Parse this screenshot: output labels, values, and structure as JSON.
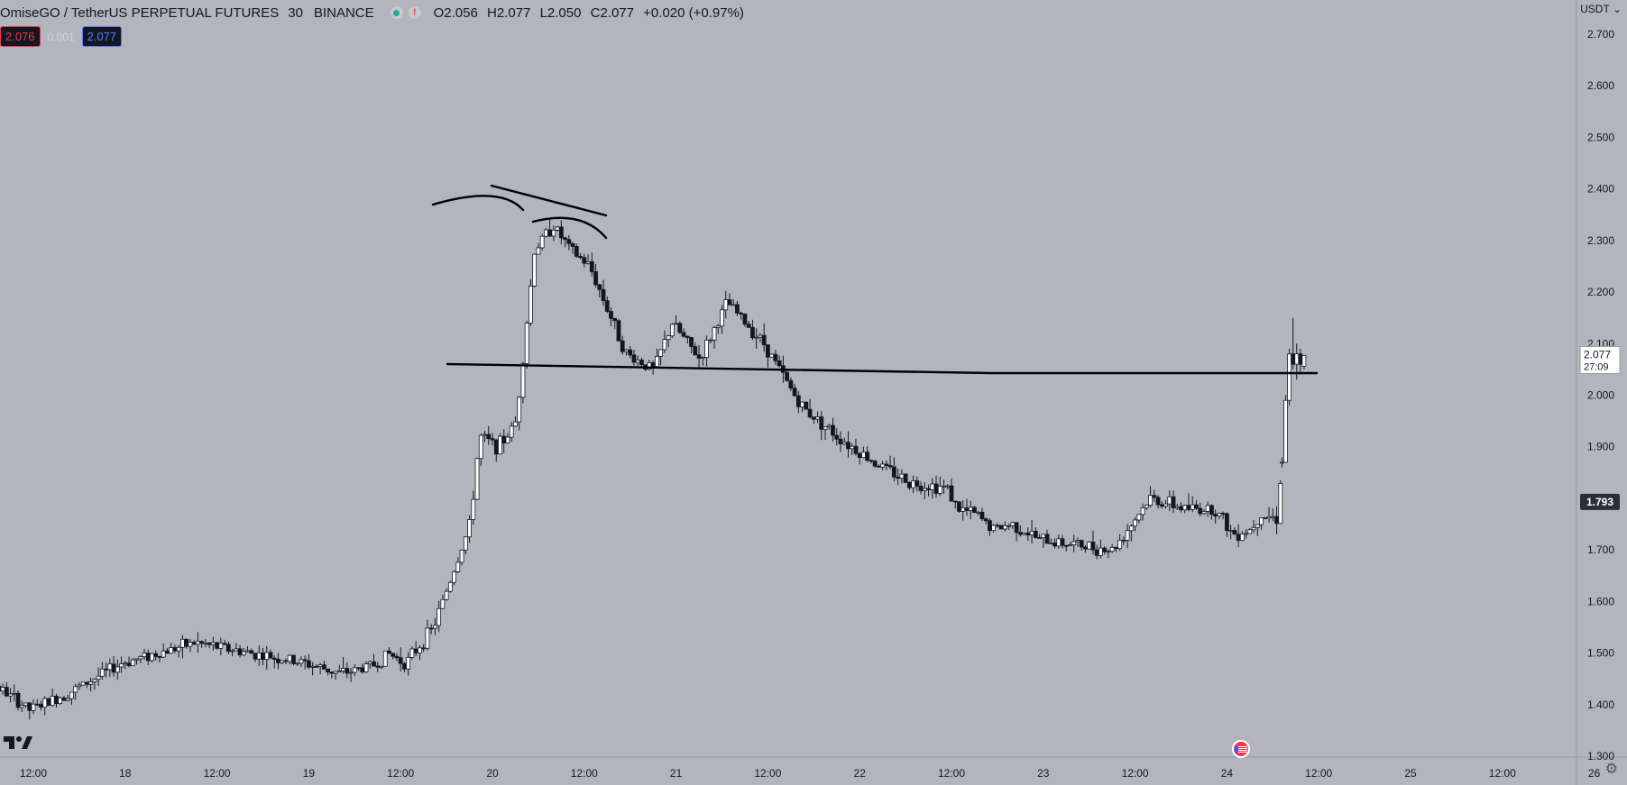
{
  "header": {
    "symbol": "OmiseGO / TetherUS PERPETUAL FUTURES",
    "timeframe": "30",
    "exchange": "BINANCE",
    "market_closed_icon": "exclamation-icon",
    "ohlc": {
      "open": "O2.056",
      "high": "H2.077",
      "low": "L2.050",
      "close": "C2.077",
      "change": "+0.020 (+0.97%)"
    }
  },
  "trade": {
    "sell": "2.076",
    "spread": "0.001",
    "buy": "2.077"
  },
  "axis": {
    "currency": "USDT"
  },
  "last_price": {
    "value": "2.077",
    "countdown": "27:09"
  },
  "marker_price": "1.793",
  "colors": {
    "background": "#b2b5be",
    "candle": "#131722",
    "sell": "#f23645",
    "buy": "#5b7cff"
  },
  "chart_data": {
    "type": "candlestick",
    "y_ticks": [
      "2.700",
      "2.600",
      "2.500",
      "2.400",
      "2.300",
      "2.200",
      "2.100",
      "2.000",
      "1.900",
      "1.800",
      "1.700",
      "1.600",
      "1.500",
      "1.400",
      "1.300"
    ],
    "ylim": [
      1.3,
      2.7
    ],
    "x_ticks": [
      "12:00",
      "18",
      "12:00",
      "19",
      "12:00",
      "20",
      "12:00",
      "21",
      "12:00",
      "22",
      "12:00",
      "23",
      "12:00",
      "24",
      "12:00",
      "25",
      "12:00",
      "26"
    ],
    "x_tick_days": [
      0.5,
      1,
      1.5,
      2,
      2.5,
      3,
      3.5,
      4,
      4.5,
      5,
      5.5,
      6,
      6.5,
      7,
      7.5,
      8,
      8.5,
      9
    ],
    "price_path_days": [
      0,
      0.3,
      0.5,
      0.7,
      1.0,
      1.4,
      1.7,
      2.0,
      2.2,
      2.4,
      2.45,
      2.55,
      2.7,
      2.9,
      2.95,
      3.05,
      3.1,
      3.15,
      3.25,
      3.35,
      3.45,
      3.55,
      3.75,
      3.9,
      4.0,
      4.15,
      4.3,
      4.5,
      4.7,
      4.9,
      5.1,
      5.3,
      5.5,
      5.55,
      5.65,
      5.75,
      5.85,
      6.0,
      6.2,
      6.4,
      6.6,
      6.8,
      6.95,
      7.0,
      7.05,
      7.15,
      7.2,
      7.3,
      7.32,
      7.38,
      7.42
    ],
    "price_path": [
      1.39,
      1.44,
      1.39,
      1.42,
      1.48,
      1.52,
      1.5,
      1.48,
      1.46,
      1.48,
      1.5,
      1.48,
      1.55,
      1.75,
      1.92,
      1.9,
      1.92,
      1.95,
      2.28,
      2.33,
      2.28,
      2.25,
      2.08,
      2.05,
      2.14,
      2.07,
      2.18,
      2.1,
      1.98,
      1.92,
      1.87,
      1.83,
      1.82,
      1.78,
      1.77,
      1.74,
      1.75,
      1.72,
      1.71,
      1.7,
      1.8,
      1.78,
      1.78,
      1.76,
      1.73,
      1.74,
      1.77,
      1.76,
      1.88,
      1.87,
      1.87
    ],
    "final_candles": [
      {
        "day": 7.3,
        "open": 1.87,
        "high": 1.88,
        "low": 1.86,
        "close": 1.87
      },
      {
        "day": 7.32,
        "open": 1.87,
        "high": 2.0,
        "low": 1.87,
        "close": 1.99
      },
      {
        "day": 7.34,
        "open": 1.99,
        "high": 2.09,
        "low": 1.98,
        "close": 2.08
      },
      {
        "day": 7.36,
        "open": 2.08,
        "high": 2.15,
        "low": 2.05,
        "close": 2.06
      },
      {
        "day": 7.38,
        "open": 2.06,
        "high": 2.1,
        "low": 2.03,
        "close": 2.08
      },
      {
        "day": 7.4,
        "open": 2.08,
        "high": 2.09,
        "low": 2.04,
        "close": 2.06
      },
      {
        "day": 7.42,
        "open": 2.056,
        "high": 2.077,
        "low": 2.05,
        "close": 2.077
      }
    ]
  }
}
